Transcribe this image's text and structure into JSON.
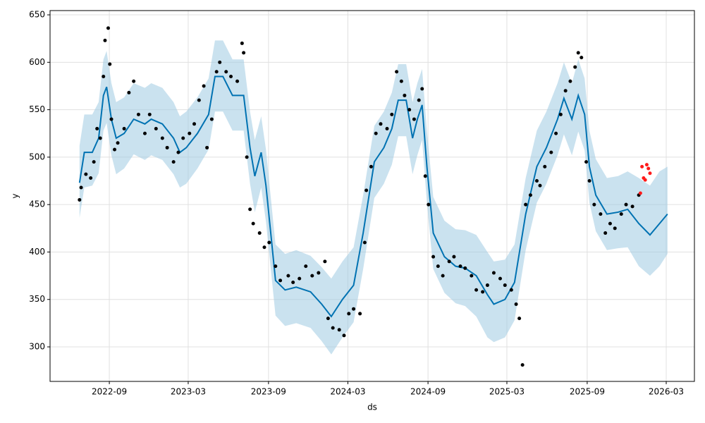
{
  "chart_data": {
    "type": "line",
    "xlabel": "ds",
    "ylabel": "y",
    "xlim": [
      2022.295,
      2026.339
    ],
    "ylim": [
      263.6,
      654.5
    ],
    "xticks": [
      {
        "value": 2022.667,
        "label": "2022-09"
      },
      {
        "value": 2023.162,
        "label": "2023-03"
      },
      {
        "value": 2023.666,
        "label": "2023-09"
      },
      {
        "value": 2024.164,
        "label": "2024-03"
      },
      {
        "value": 2024.667,
        "label": "2024-09"
      },
      {
        "value": 2025.162,
        "label": "2025-03"
      },
      {
        "value": 2025.666,
        "label": "2025-09"
      },
      {
        "value": 2026.162,
        "label": "2026-03"
      }
    ],
    "yticks": [
      300,
      350,
      400,
      450,
      500,
      550,
      600,
      650
    ],
    "grid": true,
    "forecast": {
      "color": "#0072b2",
      "x": [
        2022.48,
        2022.51,
        2022.56,
        2022.6,
        2022.63,
        2022.65,
        2022.68,
        2022.71,
        2022.76,
        2022.82,
        2022.89,
        2022.93,
        2023.0,
        2023.07,
        2023.11,
        2023.15,
        2023.22,
        2023.29,
        2023.33,
        2023.38,
        2023.44,
        2023.51,
        2023.55,
        2023.58,
        2023.62,
        2023.65,
        2023.71,
        2023.77,
        2023.84,
        2023.93,
        2024.0,
        2024.06,
        2024.13,
        2024.2,
        2024.26,
        2024.33,
        2024.39,
        2024.44,
        2024.48,
        2024.53,
        2024.57,
        2024.6,
        2024.63,
        2024.66,
        2024.7,
        2024.77,
        2024.84,
        2024.9,
        2024.97,
        2025.04,
        2025.08,
        2025.15,
        2025.21,
        2025.28,
        2025.35,
        2025.41,
        2025.48,
        2025.52,
        2025.57,
        2025.61,
        2025.65,
        2025.68,
        2025.72,
        2025.79,
        2025.86,
        2025.92,
        2025.99,
        2026.06,
        2026.12,
        2026.17
      ],
      "values": [
        473,
        505,
        505,
        520,
        565,
        574,
        540,
        520,
        525,
        540,
        535,
        540,
        535,
        520,
        505,
        510,
        525,
        545,
        585,
        585,
        565,
        565,
        510,
        480,
        505,
        470,
        370,
        360,
        363,
        358,
        345,
        332,
        350,
        365,
        420,
        495,
        510,
        530,
        560,
        560,
        520,
        540,
        555,
        490,
        420,
        395,
        385,
        383,
        375,
        355,
        345,
        350,
        368,
        440,
        490,
        510,
        540,
        562,
        540,
        565,
        545,
        490,
        460,
        440,
        442,
        445,
        430,
        418,
        430,
        440
      ]
    },
    "band": {
      "color": "#9ecae1",
      "lower": [
        436,
        468,
        470,
        483,
        528,
        536,
        502,
        482,
        488,
        503,
        497,
        502,
        497,
        482,
        468,
        472,
        488,
        508,
        548,
        548,
        528,
        528,
        472,
        442,
        468,
        432,
        333,
        322,
        325,
        320,
        306,
        292,
        310,
        326,
        382,
        457,
        472,
        492,
        522,
        522,
        482,
        502,
        518,
        452,
        382,
        357,
        346,
        343,
        332,
        310,
        305,
        310,
        328,
        402,
        452,
        472,
        502,
        524,
        502,
        527,
        507,
        452,
        422,
        402,
        404,
        405,
        385,
        375,
        385,
        398
      ],
      "upper": [
        512,
        545,
        545,
        558,
        603,
        612,
        578,
        558,
        563,
        578,
        573,
        578,
        573,
        558,
        543,
        548,
        563,
        583,
        623,
        623,
        603,
        603,
        548,
        518,
        543,
        508,
        408,
        398,
        402,
        396,
        384,
        372,
        390,
        405,
        460,
        533,
        548,
        568,
        598,
        598,
        558,
        578,
        593,
        528,
        458,
        433,
        424,
        423,
        418,
        400,
        390,
        392,
        408,
        478,
        528,
        548,
        578,
        600,
        578,
        603,
        583,
        528,
        498,
        478,
        480,
        485,
        478,
        470,
        485,
        490
      ]
    },
    "observed": {
      "color": "#000000",
      "x": [
        2022.48,
        2022.49,
        2022.52,
        2022.55,
        2022.57,
        2022.59,
        2022.61,
        2022.63,
        2022.64,
        2022.66,
        2022.67,
        2022.68,
        2022.7,
        2022.72,
        2022.76,
        2022.79,
        2022.82,
        2022.85,
        2022.89,
        2022.92,
        2022.96,
        2023.0,
        2023.03,
        2023.07,
        2023.1,
        2023.13,
        2023.17,
        2023.2,
        2023.23,
        2023.26,
        2023.28,
        2023.31,
        2023.34,
        2023.36,
        2023.4,
        2023.43,
        2023.47,
        2023.5,
        2023.51,
        2023.53,
        2023.55,
        2023.57,
        2023.61,
        2023.64,
        2023.67,
        2023.71,
        2023.74,
        2023.79,
        2023.82,
        2023.86,
        2023.9,
        2023.94,
        2023.98,
        2024.02,
        2024.04,
        2024.07,
        2024.11,
        2024.14,
        2024.17,
        2024.2,
        2024.24,
        2024.27,
        2024.28,
        2024.31,
        2024.34,
        2024.37,
        2024.41,
        2024.44,
        2024.47,
        2024.5,
        2024.52,
        2024.55,
        2024.58,
        2024.61,
        2024.63,
        2024.65,
        2024.67,
        2024.7,
        2024.73,
        2024.76,
        2024.8,
        2024.83,
        2024.87,
        2024.9,
        2024.94,
        2024.97,
        2025.01,
        2025.04,
        2025.08,
        2025.12,
        2025.15,
        2025.19,
        2025.22,
        2025.24,
        2025.26,
        2025.28,
        2025.31,
        2025.35,
        2025.37,
        2025.4,
        2025.44,
        2025.47,
        2025.5,
        2025.53,
        2025.56,
        2025.59,
        2025.61,
        2025.63,
        2025.66,
        2025.68,
        2025.71,
        2025.75,
        2025.78,
        2025.81,
        2025.84,
        2025.88,
        2025.91,
        2025.95,
        2025.99
      ],
      "values": [
        455,
        468,
        482,
        478,
        495,
        530,
        520,
        585,
        623,
        636,
        598,
        540,
        508,
        515,
        530,
        568,
        580,
        545,
        525,
        545,
        530,
        520,
        510,
        495,
        505,
        520,
        525,
        535,
        560,
        575,
        510,
        540,
        590,
        600,
        590,
        585,
        580,
        620,
        610,
        500,
        445,
        430,
        420,
        405,
        410,
        385,
        370,
        375,
        368,
        372,
        385,
        375,
        378,
        390,
        330,
        320,
        318,
        312,
        335,
        340,
        335,
        410,
        465,
        490,
        525,
        535,
        530,
        545,
        590,
        580,
        565,
        550,
        540,
        560,
        572,
        480,
        450,
        395,
        385,
        375,
        390,
        395,
        385,
        383,
        375,
        360,
        358,
        365,
        378,
        372,
        365,
        360,
        345,
        330,
        281,
        450,
        460,
        475,
        470,
        490,
        505,
        525,
        545,
        570,
        580,
        595,
        610,
        605,
        495,
        475,
        450,
        440,
        420,
        430,
        425,
        440,
        450,
        448,
        460
      ]
    },
    "future_actuals": {
      "color": "#ff1a1a",
      "x": [
        2026.0,
        2026.01,
        2026.02,
        2026.03,
        2026.04,
        2026.05,
        2026.06
      ],
      "values": [
        462,
        490,
        478,
        476,
        492,
        488,
        483
      ]
    }
  }
}
